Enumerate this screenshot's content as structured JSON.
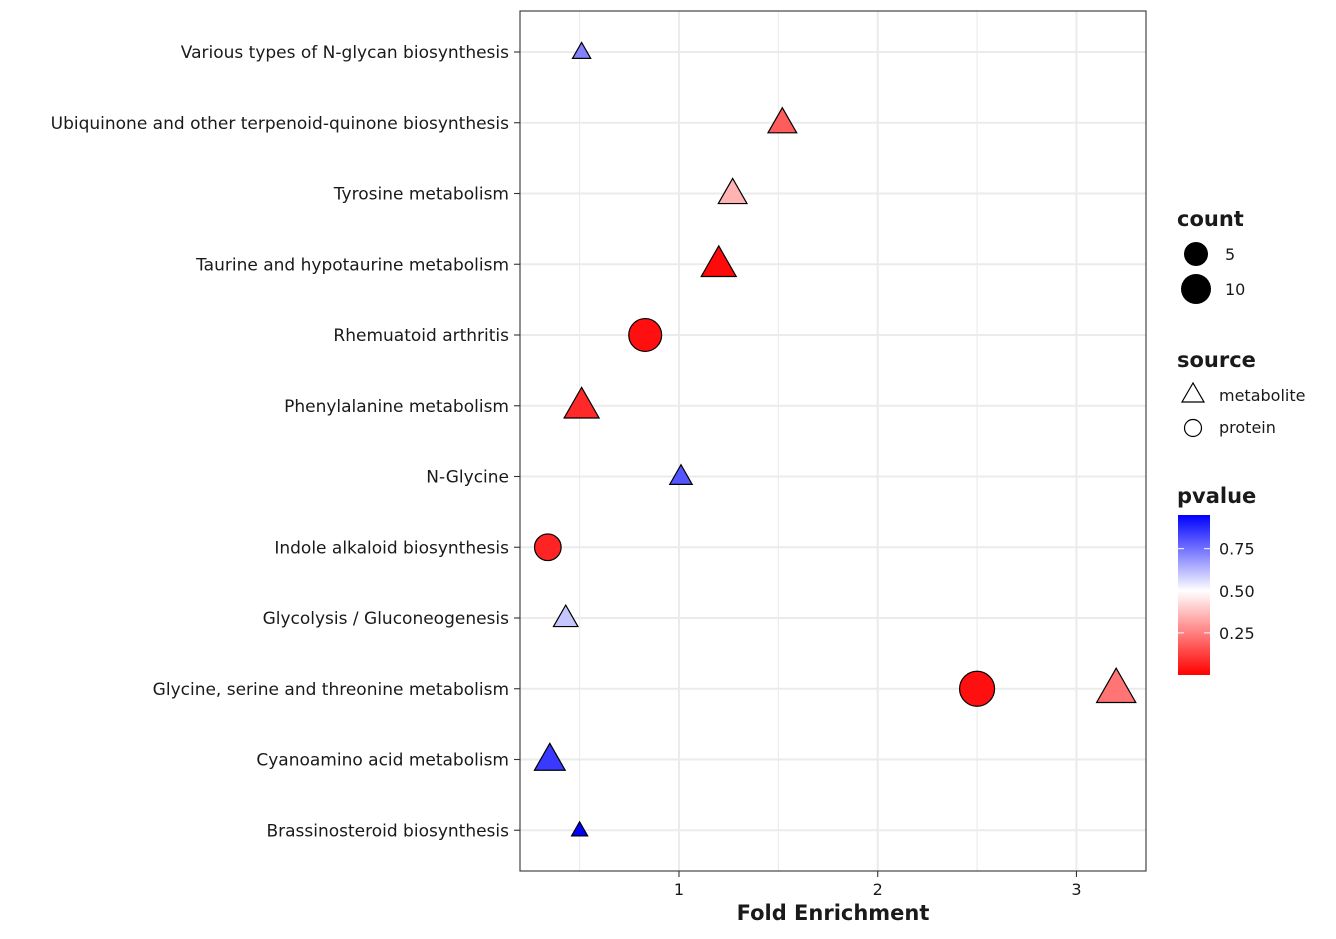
{
  "chart_data": {
    "type": "scatter",
    "title": "",
    "xlabel": "Fold Enrichment",
    "ylabel": "",
    "xlim": [
      0.2,
      3.35
    ],
    "x_ticks": [
      1,
      2,
      3
    ],
    "x_tick_labels": [
      "1",
      "2",
      "3"
    ],
    "grid": true,
    "legend_position": "right",
    "categories": [
      "Brassinosteroid biosynthesis",
      "Cyanoamino acid metabolism",
      "Glycine, serine and threonine metabolism",
      "Glycolysis / Gluconeogenesis",
      "Indole alkaloid biosynthesis",
      "N-Glycine",
      "Phenylalanine metabolism",
      "Rhemuatoid arthritis",
      "Taurine and hypotaurine metabolism",
      "Tyrosine metabolism",
      "Ubiquinone and other terpenoid-quinone biosynthesis",
      "Various types of N-glycan biosynthesis"
    ],
    "points": [
      {
        "category": "Various types of N-glycan biosynthesis",
        "x": 0.51,
        "source": "metabolite",
        "count": 2,
        "pvalue": 0.72
      },
      {
        "category": "Ubiquinone and other terpenoid-quinone biosynthesis",
        "x": 1.52,
        "source": "metabolite",
        "count": 7,
        "pvalue": 0.18
      },
      {
        "category": "Tyrosine metabolism",
        "x": 1.27,
        "source": "metabolite",
        "count": 7,
        "pvalue": 0.35
      },
      {
        "category": "Taurine and hypotaurine metabolism",
        "x": 1.2,
        "source": "metabolite",
        "count": 10,
        "pvalue": 0.02
      },
      {
        "category": "Rhemuatoid arthritis",
        "x": 0.83,
        "source": "protein",
        "count": 9,
        "pvalue": 0.03
      },
      {
        "category": "Phenylalanine metabolism",
        "x": 0.51,
        "source": "metabolite",
        "count": 10,
        "pvalue": 0.08
      },
      {
        "category": "N-Glycine",
        "x": 1.01,
        "source": "metabolite",
        "count": 4,
        "pvalue": 0.8
      },
      {
        "category": "Indole alkaloid biosynthesis",
        "x": 0.34,
        "source": "protein",
        "count": 6,
        "pvalue": 0.07
      },
      {
        "category": "Glycolysis / Gluconeogenesis",
        "x": 0.43,
        "source": "metabolite",
        "count": 5,
        "pvalue": 0.6
      },
      {
        "category": "Glycine, serine and threonine metabolism",
        "x": 2.5,
        "source": "protein",
        "count": 10,
        "pvalue": 0.03
      },
      {
        "category": "Glycine, serine and threonine metabolism",
        "x": 3.2,
        "source": "metabolite",
        "count": 12,
        "pvalue": 0.23
      },
      {
        "category": "Cyanoamino acid metabolism",
        "x": 0.35,
        "source": "metabolite",
        "count": 8,
        "pvalue": 0.85
      },
      {
        "category": "Brassinosteroid biosynthesis",
        "x": 0.5,
        "source": "metabolite",
        "count": 1,
        "pvalue": 0.97
      }
    ],
    "legend": {
      "count": {
        "title": "count",
        "entries": [
          {
            "label": "5",
            "value": 5
          },
          {
            "label": "10",
            "value": 10
          }
        ]
      },
      "source": {
        "title": "source",
        "entries": [
          {
            "label": "metabolite",
            "shape": "triangle"
          },
          {
            "label": "protein",
            "shape": "circle"
          }
        ]
      },
      "pvalue": {
        "title": "pvalue",
        "range": [
          0.0,
          0.95
        ],
        "ticks": [
          0.25,
          0.5,
          0.75
        ],
        "tick_labels": [
          "0.25",
          "0.50",
          "0.75"
        ],
        "colors": {
          "low": "#ff0000",
          "mid": "#ffffff",
          "high": "#0000ff"
        }
      }
    }
  }
}
